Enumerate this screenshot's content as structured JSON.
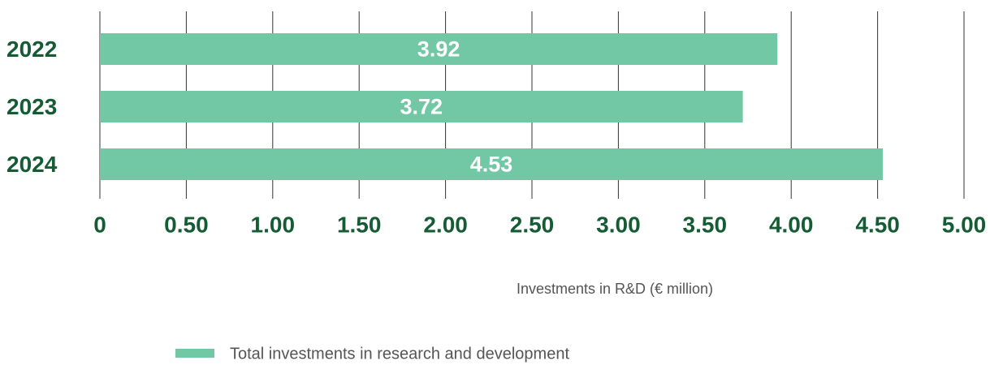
{
  "chart_data": {
    "type": "bar",
    "orientation": "horizontal",
    "categories": [
      "2022",
      "2023",
      "2024"
    ],
    "series": [
      {
        "name": "Total investments in research and development",
        "color": "#72c7a5",
        "values": [
          3.92,
          3.72,
          4.53
        ]
      }
    ],
    "xlabel": "Investments in R&D (€ million)",
    "xlim": [
      0,
      5
    ],
    "xticks": [
      0,
      {
        "value": 0.5,
        "label": "0.50"
      },
      {
        "value": 1,
        "label": "1.00"
      },
      {
        "value": 1.5,
        "label": "1.50"
      },
      {
        "value": 2,
        "label": "2.00"
      },
      {
        "value": 2.5,
        "label": "2.50"
      },
      {
        "value": 3,
        "label": "3.00"
      },
      {
        "value": 3.5,
        "label": "3.50"
      },
      {
        "value": 4,
        "label": "4.00"
      },
      {
        "value": 4.5,
        "label": "4.50"
      },
      {
        "value": 5,
        "label": "5.00"
      }
    ],
    "grid": true,
    "legend": "bottom"
  }
}
